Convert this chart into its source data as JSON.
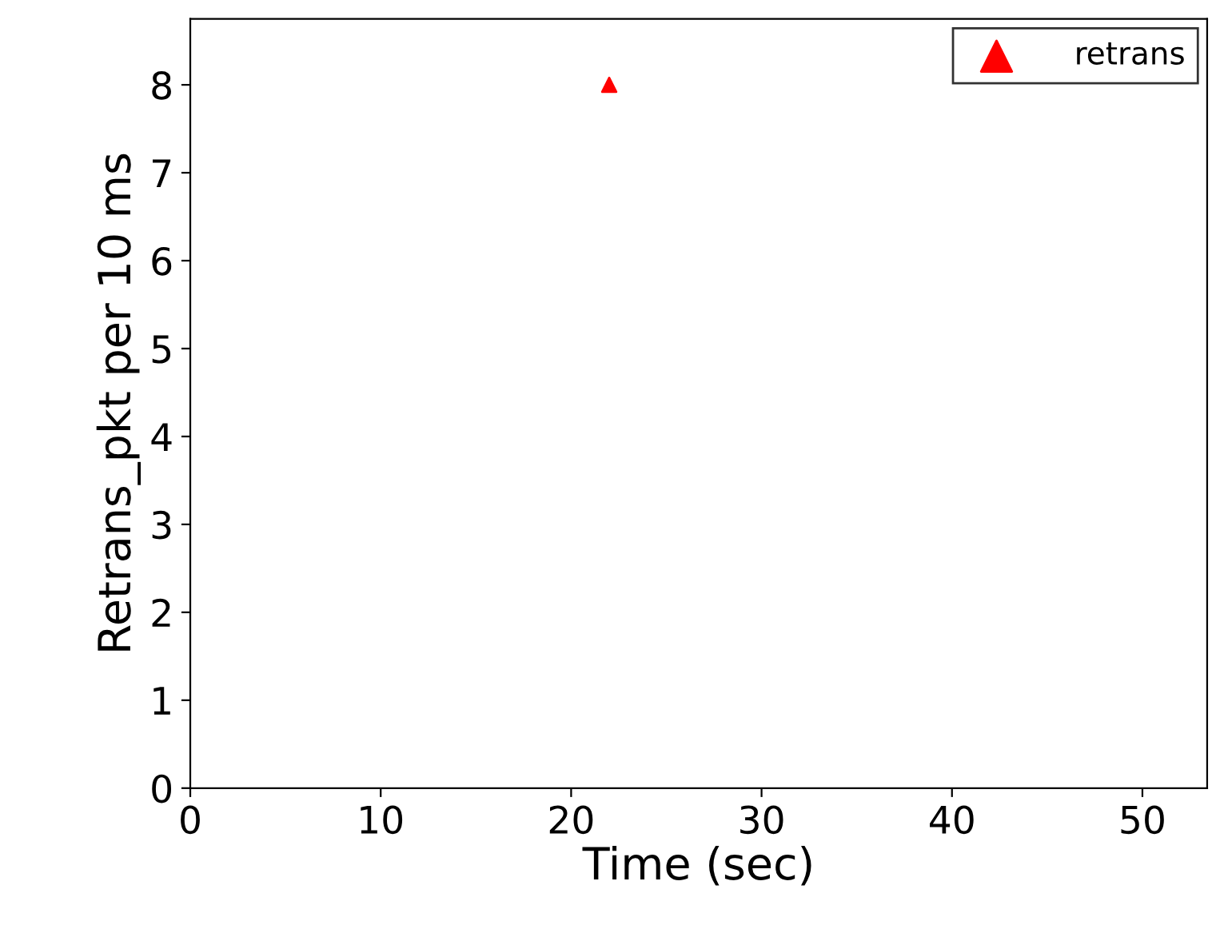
{
  "chart_data": {
    "type": "scatter",
    "xlabel": "Time (sec)",
    "ylabel": "Retrans_pkt per 10 ms",
    "series": [
      {
        "name": "retrans",
        "color": "#ff0000",
        "x": [
          22
        ],
        "values": [
          8
        ]
      }
    ],
    "marker": "triangle",
    "xlim": [
      0,
      53.4
    ],
    "ylim": [
      0,
      8.75
    ],
    "xticks": [
      0,
      10,
      20,
      30,
      40,
      50
    ],
    "yticks": [
      0,
      1,
      2,
      3,
      4,
      5,
      6,
      7,
      8
    ],
    "grid": false,
    "legend": "top right"
  }
}
